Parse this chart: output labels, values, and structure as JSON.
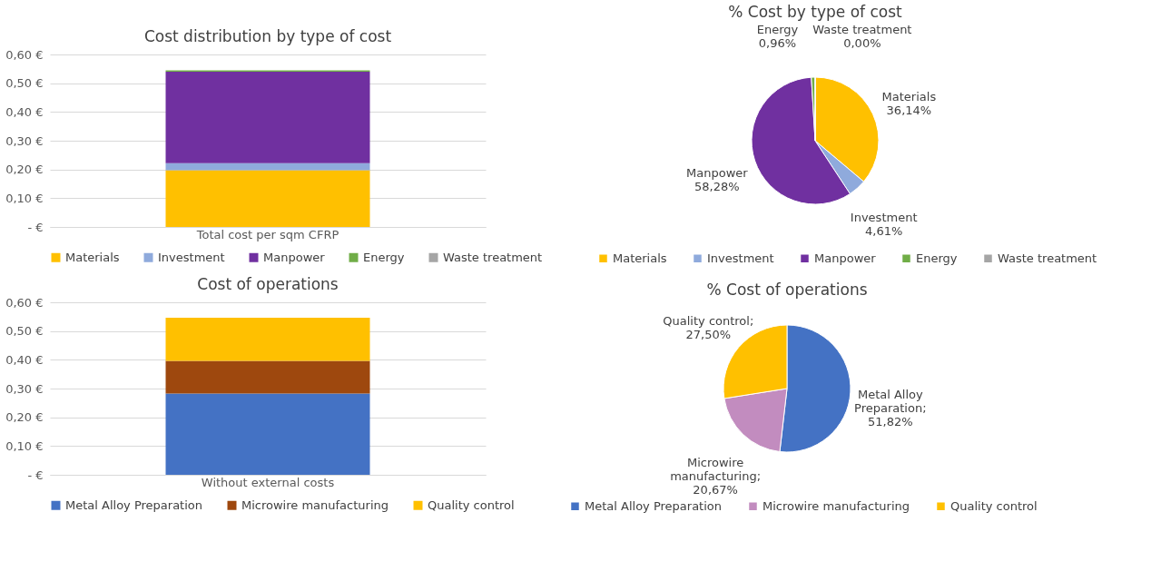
{
  "chart_data": [
    {
      "type": "bar",
      "title": "Cost distribution  by type of cost",
      "stacked": true,
      "categories": [
        "Total cost per sqm CFRP"
      ],
      "ylim": [
        0,
        0.6
      ],
      "yticks": [
        {
          "value": 0,
          "label": "-   €"
        },
        {
          "value": 0.1,
          "label": "0,10 €"
        },
        {
          "value": 0.2,
          "label": "0,20 €"
        },
        {
          "value": 0.3,
          "label": "0,30 €"
        },
        {
          "value": 0.4,
          "label": "0,40 €"
        },
        {
          "value": 0.5,
          "label": "0,50 €"
        },
        {
          "value": 0.6,
          "label": "0,60 €"
        }
      ],
      "grid": "y",
      "legend": "bottom",
      "series": [
        {
          "name": "Materials",
          "color": "#ffc000",
          "values": [
            0.197
          ]
        },
        {
          "name": "Investment",
          "color": "#8faadc",
          "values": [
            0.025
          ]
        },
        {
          "name": "Manpower",
          "color": "#7030a0",
          "values": [
            0.318
          ]
        },
        {
          "name": "Energy",
          "color": "#70ad47",
          "values": [
            0.005
          ]
        },
        {
          "name": "Waste treatment",
          "color": "#a5a5a5",
          "values": [
            0
          ]
        }
      ]
    },
    {
      "type": "pie",
      "title": "% Cost by type of cost",
      "legend": "bottom",
      "categories": [
        "Materials",
        "Investment",
        "Manpower",
        "Energy",
        "Waste treatment"
      ],
      "values": [
        36.14,
        4.61,
        58.28,
        0.96,
        0.0
      ],
      "colors": [
        "#ffc000",
        "#8faadc",
        "#7030a0",
        "#70ad47",
        "#a5a5a5"
      ],
      "value_labels": [
        "Materials\n36,14%",
        "Investment\n4,61%",
        "Manpower\n58,28%",
        "Energy\n0,96%",
        "Waste treatment\n0,00%"
      ]
    },
    {
      "type": "bar",
      "title": "Cost of operations",
      "stacked": true,
      "categories": [
        "Without external costs"
      ],
      "ylim": [
        0,
        0.6
      ],
      "yticks": [
        {
          "value": 0,
          "label": "-   €"
        },
        {
          "value": 0.1,
          "label": "0,10 €"
        },
        {
          "value": 0.2,
          "label": "0,20 €"
        },
        {
          "value": 0.3,
          "label": "0,30 €"
        },
        {
          "value": 0.4,
          "label": "0,40 €"
        },
        {
          "value": 0.5,
          "label": "0,50 €"
        },
        {
          "value": 0.6,
          "label": "0,60 €"
        }
      ],
      "grid": "y",
      "legend": "bottom",
      "series": [
        {
          "name": "Metal Alloy Preparation",
          "color": "#4472c4",
          "values": [
            0.283
          ]
        },
        {
          "name": "Microwire manufacturing",
          "color": "#9e480e",
          "values": [
            0.113
          ]
        },
        {
          "name": "Quality control",
          "color": "#ffc000",
          "values": [
            0.15
          ]
        }
      ]
    },
    {
      "type": "pie",
      "title": "% Cost of operations",
      "legend": "bottom",
      "categories": [
        "Metal Alloy Preparation",
        "Microwire manufacturing",
        "Quality control"
      ],
      "values": [
        51.82,
        20.67,
        27.5
      ],
      "colors": [
        "#4472c4",
        "#c28cbf",
        "#ffc000"
      ],
      "value_labels": [
        "Metal Alloy\nPreparation;\n51,82%",
        "Microwire\nmanufacturing;\n20,67%",
        "Quality control;\n27,50%"
      ]
    }
  ]
}
